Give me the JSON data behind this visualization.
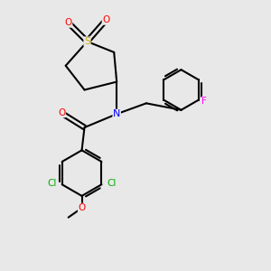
{
  "bg_color": "#e8e8e8",
  "bond_color": "#000000",
  "bond_width": 1.5,
  "atom_colors": {
    "O": "#ff0000",
    "N": "#0000ff",
    "S": "#ccaa00",
    "Cl": "#00aa00",
    "F": "#ff00ff",
    "C": "#000000"
  },
  "figsize": [
    3.0,
    3.0
  ],
  "dpi": 100,
  "xlim": [
    0,
    10
  ],
  "ylim": [
    0,
    10
  ]
}
